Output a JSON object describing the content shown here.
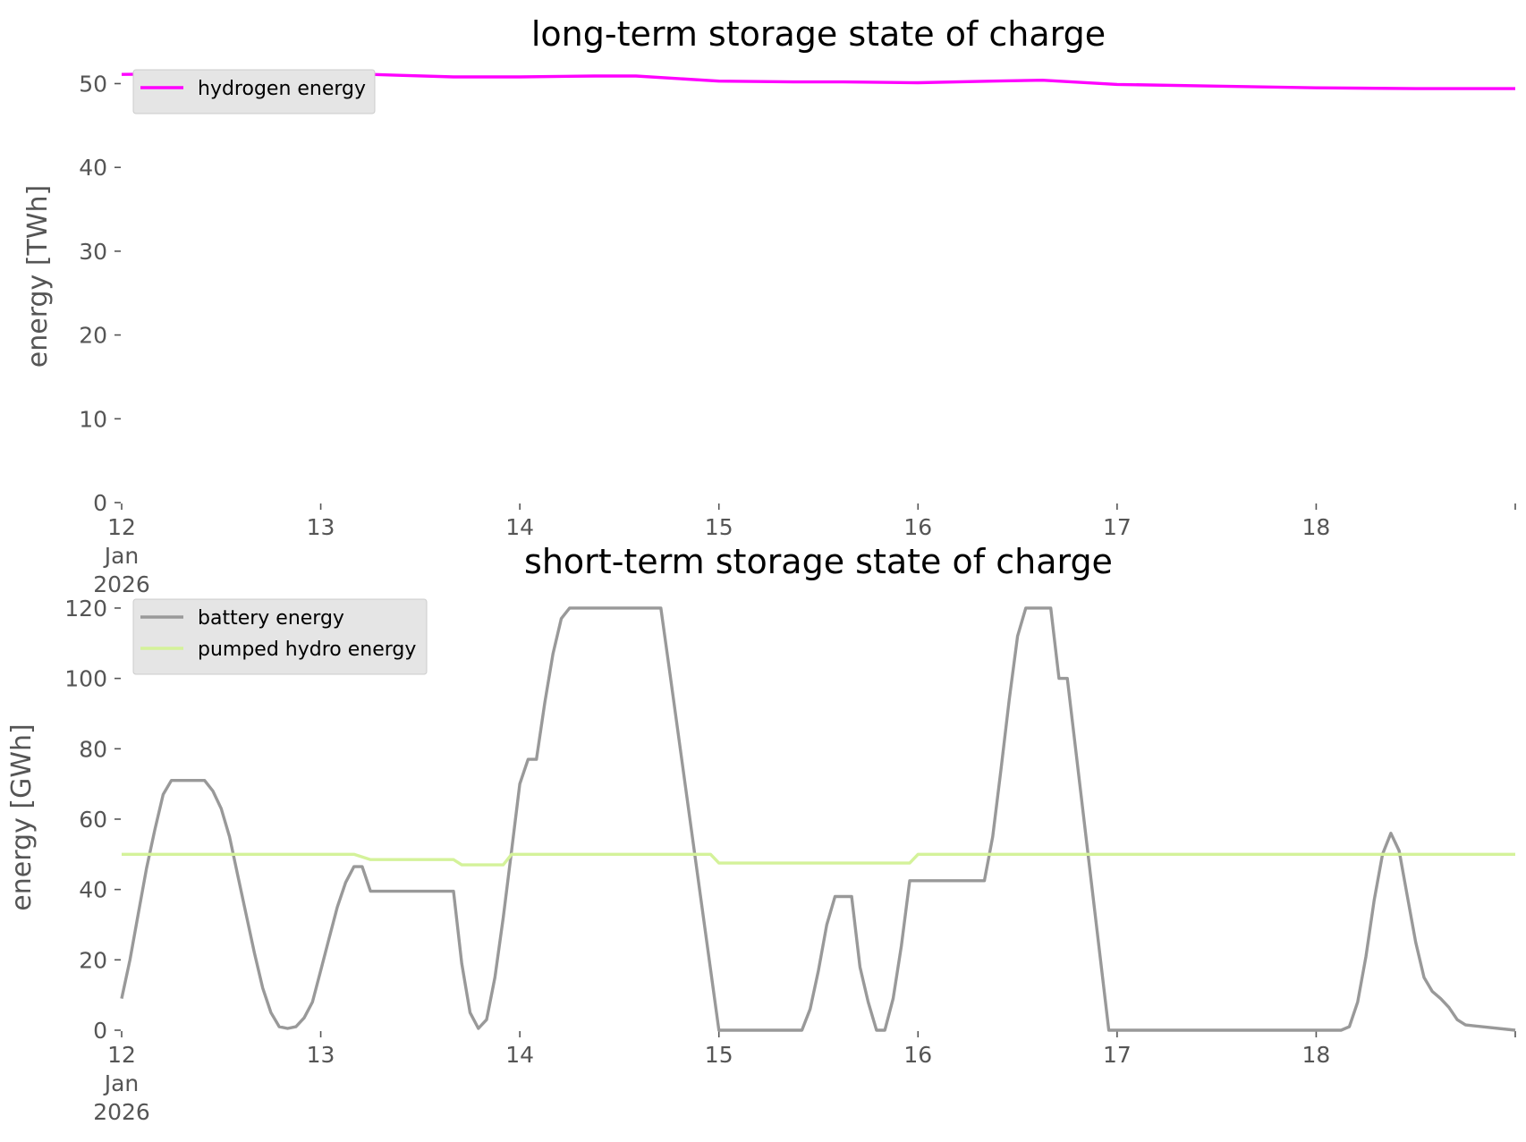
{
  "chart_data": [
    {
      "type": "line",
      "title": "long-term storage state of charge",
      "xlabel": "",
      "ylabel": "energy [TWh]",
      "x_range": [
        "2026-01-12T00:00",
        "2026-01-19T00:00"
      ],
      "xticks": [
        {
          "x": "2026-01-12",
          "label": "12\nJan\n2026"
        },
        {
          "x": "2026-01-13",
          "label": "13"
        },
        {
          "x": "2026-01-14",
          "label": "14"
        },
        {
          "x": "2026-01-15",
          "label": "15"
        },
        {
          "x": "2026-01-16",
          "label": "16"
        },
        {
          "x": "2026-01-17",
          "label": "17"
        },
        {
          "x": "2026-01-18",
          "label": "18"
        }
      ],
      "ylim": [
        0,
        54
      ],
      "yticks": [
        0,
        10,
        20,
        30,
        40,
        50
      ],
      "grid": false,
      "legend": "top-left",
      "series": [
        {
          "name": "hydrogen energy",
          "color": "#ff00ff",
          "points": [
            [
              "2026-01-12T00:00",
              51.1
            ],
            [
              "2026-01-12T12:00",
              51.2
            ],
            [
              "2026-01-13T00:00",
              51.3
            ],
            [
              "2026-01-13T09:00",
              51.0
            ],
            [
              "2026-01-13T16:00",
              50.8
            ],
            [
              "2026-01-14T00:00",
              50.8
            ],
            [
              "2026-01-14T09:00",
              50.9
            ],
            [
              "2026-01-14T14:00",
              50.9
            ],
            [
              "2026-01-15T00:00",
              50.3
            ],
            [
              "2026-01-15T09:00",
              50.2
            ],
            [
              "2026-01-15T15:00",
              50.2
            ],
            [
              "2026-01-16T00:00",
              50.1
            ],
            [
              "2026-01-16T09:00",
              50.3
            ],
            [
              "2026-01-16T15:00",
              50.4
            ],
            [
              "2026-01-17T00:00",
              49.9
            ],
            [
              "2026-01-17T12:00",
              49.7
            ],
            [
              "2026-01-18T00:00",
              49.5
            ],
            [
              "2026-01-18T12:00",
              49.4
            ],
            [
              "2026-01-19T00:00",
              49.4
            ]
          ]
        }
      ]
    },
    {
      "type": "line",
      "title": "short-term storage state of charge",
      "xlabel": "",
      "ylabel": "energy [GWh]",
      "x_range": [
        "2026-01-12T00:00",
        "2026-01-19T00:00"
      ],
      "xticks": [
        {
          "x": "2026-01-12",
          "label": "12\nJan\n2026"
        },
        {
          "x": "2026-01-13",
          "label": "13"
        },
        {
          "x": "2026-01-14",
          "label": "14"
        },
        {
          "x": "2026-01-15",
          "label": "15"
        },
        {
          "x": "2026-01-16",
          "label": "16"
        },
        {
          "x": "2026-01-17",
          "label": "17"
        },
        {
          "x": "2026-01-18",
          "label": "18"
        }
      ],
      "ylim": [
        0,
        121
      ],
      "yticks": [
        0,
        20,
        40,
        60,
        80,
        100,
        120
      ],
      "grid": false,
      "legend": "top-left",
      "series": [
        {
          "name": "battery energy",
          "color": "#999999",
          "points": [
            [
              "2026-01-12T00:00",
              9
            ],
            [
              "2026-01-12T01:00",
              20
            ],
            [
              "2026-01-12T02:00",
              33
            ],
            [
              "2026-01-12T03:00",
              46
            ],
            [
              "2026-01-12T04:00",
              57
            ],
            [
              "2026-01-12T05:00",
              67
            ],
            [
              "2026-01-12T06:00",
              71
            ],
            [
              "2026-01-12T07:00",
              71
            ],
            [
              "2026-01-12T08:00",
              71
            ],
            [
              "2026-01-12T09:00",
              71
            ],
            [
              "2026-01-12T10:00",
              71
            ],
            [
              "2026-01-12T11:00",
              68
            ],
            [
              "2026-01-12T12:00",
              63
            ],
            [
              "2026-01-12T13:00",
              55
            ],
            [
              "2026-01-12T14:00",
              44
            ],
            [
              "2026-01-12T15:00",
              33
            ],
            [
              "2026-01-12T16:00",
              22
            ],
            [
              "2026-01-12T17:00",
              12
            ],
            [
              "2026-01-12T18:00",
              5
            ],
            [
              "2026-01-12T19:00",
              1
            ],
            [
              "2026-01-12T20:00",
              0.5
            ],
            [
              "2026-01-12T21:00",
              1
            ],
            [
              "2026-01-12T22:00",
              3.5
            ],
            [
              "2026-01-12T23:00",
              8
            ],
            [
              "2026-01-13T00:00",
              17
            ],
            [
              "2026-01-13T01:00",
              26
            ],
            [
              "2026-01-13T02:00",
              35
            ],
            [
              "2026-01-13T03:00",
              42
            ],
            [
              "2026-01-13T04:00",
              46.5
            ],
            [
              "2026-01-13T05:00",
              46.5
            ],
            [
              "2026-01-13T06:00",
              39.5
            ],
            [
              "2026-01-13T16:00",
              39.5
            ],
            [
              "2026-01-13T17:00",
              19
            ],
            [
              "2026-01-13T18:00",
              5
            ],
            [
              "2026-01-13T19:00",
              0.5
            ],
            [
              "2026-01-13T20:00",
              3
            ],
            [
              "2026-01-13T21:00",
              15
            ],
            [
              "2026-01-13T22:00",
              32
            ],
            [
              "2026-01-13T23:00",
              51
            ],
            [
              "2026-01-14T00:00",
              70
            ],
            [
              "2026-01-14T01:00",
              77
            ],
            [
              "2026-01-14T02:00",
              77
            ],
            [
              "2026-01-14T03:00",
              93
            ],
            [
              "2026-01-14T04:00",
              107
            ],
            [
              "2026-01-14T05:00",
              117
            ],
            [
              "2026-01-14T06:00",
              120
            ],
            [
              "2026-01-14T17:00",
              120
            ],
            [
              "2026-01-14T18:00",
              103
            ],
            [
              "2026-01-15T00:00",
              0
            ],
            [
              "2026-01-15T10:00",
              0
            ],
            [
              "2026-01-15T11:00",
              6
            ],
            [
              "2026-01-15T12:00",
              17
            ],
            [
              "2026-01-15T13:00",
              30
            ],
            [
              "2026-01-15T14:00",
              38
            ],
            [
              "2026-01-15T16:00",
              38
            ],
            [
              "2026-01-15T17:00",
              18
            ],
            [
              "2026-01-15T18:00",
              8
            ],
            [
              "2026-01-15T19:00",
              0
            ],
            [
              "2026-01-15T20:00",
              0
            ],
            [
              "2026-01-15T21:00",
              9
            ],
            [
              "2026-01-15T22:00",
              24
            ],
            [
              "2026-01-15T23:00",
              42.5
            ],
            [
              "2026-01-16T08:00",
              42.5
            ],
            [
              "2026-01-16T09:00",
              55
            ],
            [
              "2026-01-16T10:00",
              74
            ],
            [
              "2026-01-16T11:00",
              94
            ],
            [
              "2026-01-16T12:00",
              112
            ],
            [
              "2026-01-16T13:00",
              120
            ],
            [
              "2026-01-16T16:00",
              120
            ],
            [
              "2026-01-16T17:00",
              100
            ],
            [
              "2026-01-16T18:00",
              100
            ],
            [
              "2026-01-16T23:00",
              0
            ],
            [
              "2026-01-18T03:00",
              0
            ],
            [
              "2026-01-18T04:00",
              1
            ],
            [
              "2026-01-18T05:00",
              8
            ],
            [
              "2026-01-18T06:00",
              21
            ],
            [
              "2026-01-18T07:00",
              37
            ],
            [
              "2026-01-18T08:00",
              50
            ],
            [
              "2026-01-18T09:00",
              56
            ],
            [
              "2026-01-18T10:00",
              51
            ],
            [
              "2026-01-18T11:00",
              38
            ],
            [
              "2026-01-18T12:00",
              25
            ],
            [
              "2026-01-18T13:00",
              15
            ],
            [
              "2026-01-18T14:00",
              11
            ],
            [
              "2026-01-18T15:00",
              9
            ],
            [
              "2026-01-18T16:00",
              6.5
            ],
            [
              "2026-01-18T17:00",
              3
            ],
            [
              "2026-01-18T18:00",
              1.5
            ],
            [
              "2026-01-19T00:00",
              0
            ]
          ]
        },
        {
          "name": "pumped hydro energy",
          "color": "#d4f29a",
          "points": [
            [
              "2026-01-12T00:00",
              50
            ],
            [
              "2026-01-13T04:00",
              50
            ],
            [
              "2026-01-13T06:00",
              48.5
            ],
            [
              "2026-01-13T16:00",
              48.5
            ],
            [
              "2026-01-13T17:00",
              47
            ],
            [
              "2026-01-13T22:00",
              47
            ],
            [
              "2026-01-13T23:00",
              50
            ],
            [
              "2026-01-14T23:00",
              50
            ],
            [
              "2026-01-15T00:00",
              47.5
            ],
            [
              "2026-01-15T23:00",
              47.5
            ],
            [
              "2026-01-16T00:00",
              50
            ],
            [
              "2026-01-19T00:00",
              50
            ]
          ]
        }
      ]
    }
  ]
}
